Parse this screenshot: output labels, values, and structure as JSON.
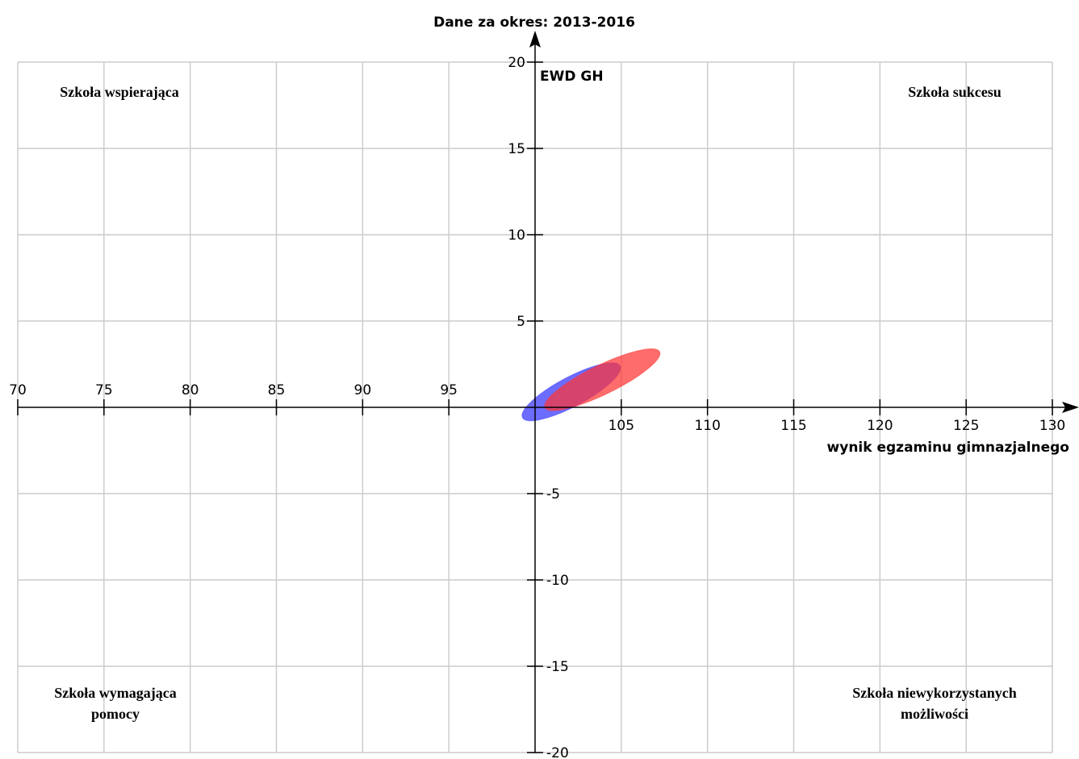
{
  "chart_data": {
    "type": "scatter",
    "title": "Dane za okres: 2013-2016",
    "xlabel": "wynik egzaminu gimnazjalnego",
    "ylabel": "EWD GH",
    "xlim": [
      70,
      130
    ],
    "ylim": [
      -20,
      20
    ],
    "x_ticks": [
      "70",
      "75",
      "80",
      "85",
      "90",
      "95",
      "105",
      "110",
      "115",
      "120",
      "125",
      "130"
    ],
    "y_ticks": [
      "20",
      "15",
      "10",
      "5",
      "-5",
      "-10",
      "-15",
      "-20"
    ],
    "grid": true,
    "quadrant_labels": {
      "top_left": "Szkoła wspierająca",
      "top_right": "Szkoła sukcesu",
      "bottom_left": [
        "Szkoła wymagająca",
        "pomocy"
      ],
      "bottom_right": [
        "Szkoła niewykorzystanych",
        "możliwości"
      ]
    },
    "series": [
      {
        "center": [
          102.1,
          0.9
        ],
        "semi_major": 3.2,
        "semi_minor": 0.85,
        "rotation_deg": -28,
        "color": "#3333ff"
      },
      {
        "center": [
          103.9,
          1.6
        ],
        "semi_major": 3.7,
        "semi_minor": 0.85,
        "rotation_deg": -26,
        "color": "#ff3333"
      }
    ]
  }
}
